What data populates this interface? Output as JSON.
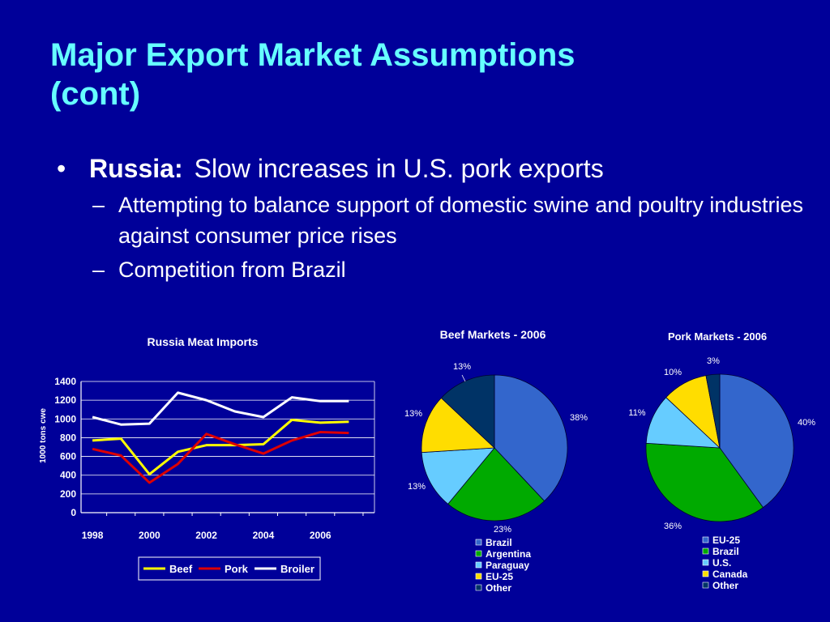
{
  "slide": {
    "title_line1": "Major Export Market Assumptions",
    "title_line2": "(cont)",
    "bullet": {
      "marker": "•",
      "lead": "Russia:",
      "text": "Slow increases in U.S. pork exports"
    },
    "subbullets": [
      {
        "marker": "–",
        "text": "Attempting to balance support of domestic swine and poultry industries against consumer price rises"
      },
      {
        "marker": "–",
        "text": "Competition from Brazil"
      }
    ]
  },
  "colors": {
    "background": "#000099",
    "title": "#66ffff"
  },
  "chart_data": [
    {
      "type": "line",
      "title": "Russia Meat Imports",
      "ylabel": "1000 tons cwe",
      "xlabel": "",
      "x": [
        1998,
        1999,
        2000,
        2001,
        2002,
        2003,
        2004,
        2005,
        2006,
        2007
      ],
      "xticks": [
        "1998",
        "2000",
        "2002",
        "2004",
        "2006"
      ],
      "yticks": [
        "0",
        "200",
        "400",
        "600",
        "800",
        "1000",
        "1200",
        "1400"
      ],
      "ylim": [
        0,
        1400
      ],
      "grid": true,
      "legend_position": "bottom",
      "series": [
        {
          "name": "Beef",
          "color": "#ffff00",
          "values": [
            770,
            790,
            410,
            650,
            720,
            720,
            730,
            990,
            960,
            970
          ]
        },
        {
          "name": "Pork",
          "color": "#dd0000",
          "values": [
            680,
            610,
            320,
            520,
            840,
            730,
            630,
            770,
            860,
            850
          ]
        },
        {
          "name": "Broiler",
          "color": "#ffffff",
          "values": [
            1020,
            940,
            950,
            1280,
            1200,
            1080,
            1020,
            1230,
            1190,
            1190
          ]
        }
      ]
    },
    {
      "type": "pie",
      "title": "Beef Markets - 2006",
      "slices": [
        {
          "label": "Brazil",
          "value": 38,
          "display": "38%",
          "color": "#3366cc"
        },
        {
          "label": "Argentina",
          "value": 23,
          "display": "23%",
          "color": "#00aa00"
        },
        {
          "label": "Paraguay",
          "value": 13,
          "display": "13%",
          "color": "#66ccff"
        },
        {
          "label": "EU-25",
          "value": 13,
          "display": "13%",
          "color": "#ffdd00"
        },
        {
          "label": "Other",
          "value": 13,
          "display": "13%",
          "color": "#003366"
        }
      ],
      "legend_position": "bottom"
    },
    {
      "type": "pie",
      "title": "Pork Markets - 2006",
      "slices": [
        {
          "label": "EU-25",
          "value": 40,
          "display": "40%",
          "color": "#3366cc"
        },
        {
          "label": "Brazil",
          "value": 36,
          "display": "36%",
          "color": "#00aa00"
        },
        {
          "label": "U.S.",
          "value": 11,
          "display": "11%",
          "color": "#66ccff"
        },
        {
          "label": "Canada",
          "value": 10,
          "display": "10%",
          "color": "#ffdd00"
        },
        {
          "label": "Other",
          "value": 3,
          "display": "3%",
          "color": "#003366"
        }
      ],
      "legend_position": "bottom"
    }
  ]
}
